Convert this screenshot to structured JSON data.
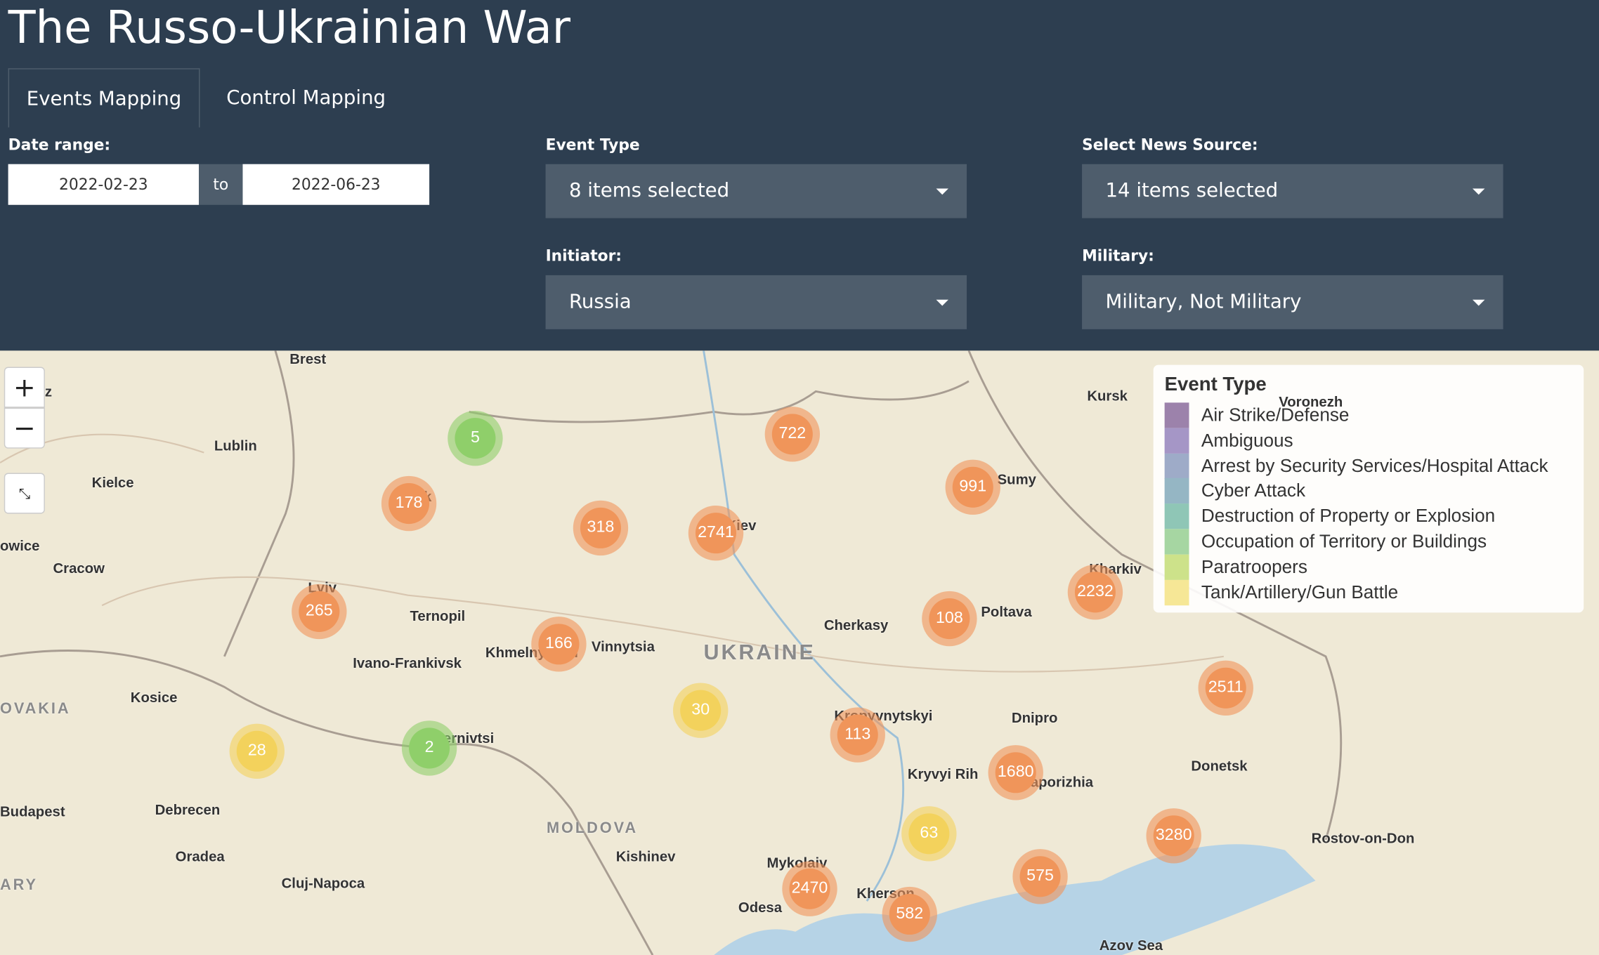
{
  "header": {
    "title": "The Russo-Ukrainian War",
    "tabs": [
      "Events Mapping",
      "Control Mapping"
    ]
  },
  "filters": {
    "date_range": {
      "label": "Date range:",
      "start": "2022-02-23",
      "separator": "to",
      "end": "2022-06-23"
    },
    "event_type": {
      "label": "Event Type",
      "value": "8 items selected"
    },
    "news_source": {
      "label": "Select News Source:",
      "value": "14 items selected"
    },
    "initiator": {
      "label": "Initiator:",
      "value": "Russia"
    },
    "military": {
      "label": "Military:",
      "value": "Military, Not Military"
    }
  },
  "map": {
    "zoom_in": "+",
    "zoom_out": "−",
    "places": [
      "Brest",
      "Lublin",
      "Kielce",
      "Cracow",
      "owice",
      "z",
      "Lviv",
      "Lutsk",
      "Ternopil",
      "Ivano-Frankivsk",
      "Kosice",
      "OVAKIA",
      "Debrecen",
      "Budapest",
      "Oradea",
      "Cluj-Napoca",
      "ARY",
      "Chernivtsi",
      "Khmelnytskyi",
      "Vinnytsia",
      "UKRAINE",
      "MOLDOVA",
      "Kishinev",
      "Odesa",
      "Mykolaiv",
      "Kherson",
      "Kropyvnytskyi",
      "Kryvyi Rih",
      "Dnipro",
      "Zaporizhia",
      "Donetsk",
      "Rostov-on-Don",
      "Azov Sea",
      "Cherkasy",
      "Poltava",
      "Kharkiv",
      "Sumy",
      "Kursk",
      "Voronezh",
      "Kiev"
    ],
    "clusters": [
      {
        "count": 5,
        "color": "#8fcf6a"
      },
      {
        "count": 722,
        "color": "#f0955a"
      },
      {
        "count": 991,
        "color": "#f0955a"
      },
      {
        "count": 178,
        "color": "#f0955a"
      },
      {
        "count": 318,
        "color": "#f0955a"
      },
      {
        "count": 2741,
        "color": "#f0955a"
      },
      {
        "count": 2232,
        "color": "#f0955a"
      },
      {
        "count": 265,
        "color": "#f0955a"
      },
      {
        "count": 108,
        "color": "#f0955a"
      },
      {
        "count": 166,
        "color": "#f0955a"
      },
      {
        "count": 2511,
        "color": "#f0955a"
      },
      {
        "count": 30,
        "color": "#f3d25c"
      },
      {
        "count": 113,
        "color": "#f0955a"
      },
      {
        "count": 28,
        "color": "#f3d25c"
      },
      {
        "count": 2,
        "color": "#8fcf6a"
      },
      {
        "count": 1680,
        "color": "#f0955a"
      },
      {
        "count": 63,
        "color": "#f3d25c"
      },
      {
        "count": 3280,
        "color": "#f0955a"
      },
      {
        "count": 575,
        "color": "#f0955a"
      },
      {
        "count": 2470,
        "color": "#f0955a"
      },
      {
        "count": 582,
        "color": "#f0955a"
      }
    ]
  },
  "legend": {
    "title": "Event Type",
    "items": [
      {
        "label": "Air Strike/Defense",
        "color": "#9c82ab"
      },
      {
        "label": "Ambiguous",
        "color": "#a596c6"
      },
      {
        "label": "Arrest by Security Services/Hospital Attack",
        "color": "#9eabc8"
      },
      {
        "label": "Cyber Attack",
        "color": "#95b6c4"
      },
      {
        "label": "Destruction of Property or Explosion",
        "color": "#8fc6b6"
      },
      {
        "label": "Occupation of Territory or Buildings",
        "color": "#a6d6a2"
      },
      {
        "label": "Paratroopers",
        "color": "#cde28a"
      },
      {
        "label": "Tank/Artillery/Gun Battle",
        "color": "#f6e796"
      }
    ]
  }
}
